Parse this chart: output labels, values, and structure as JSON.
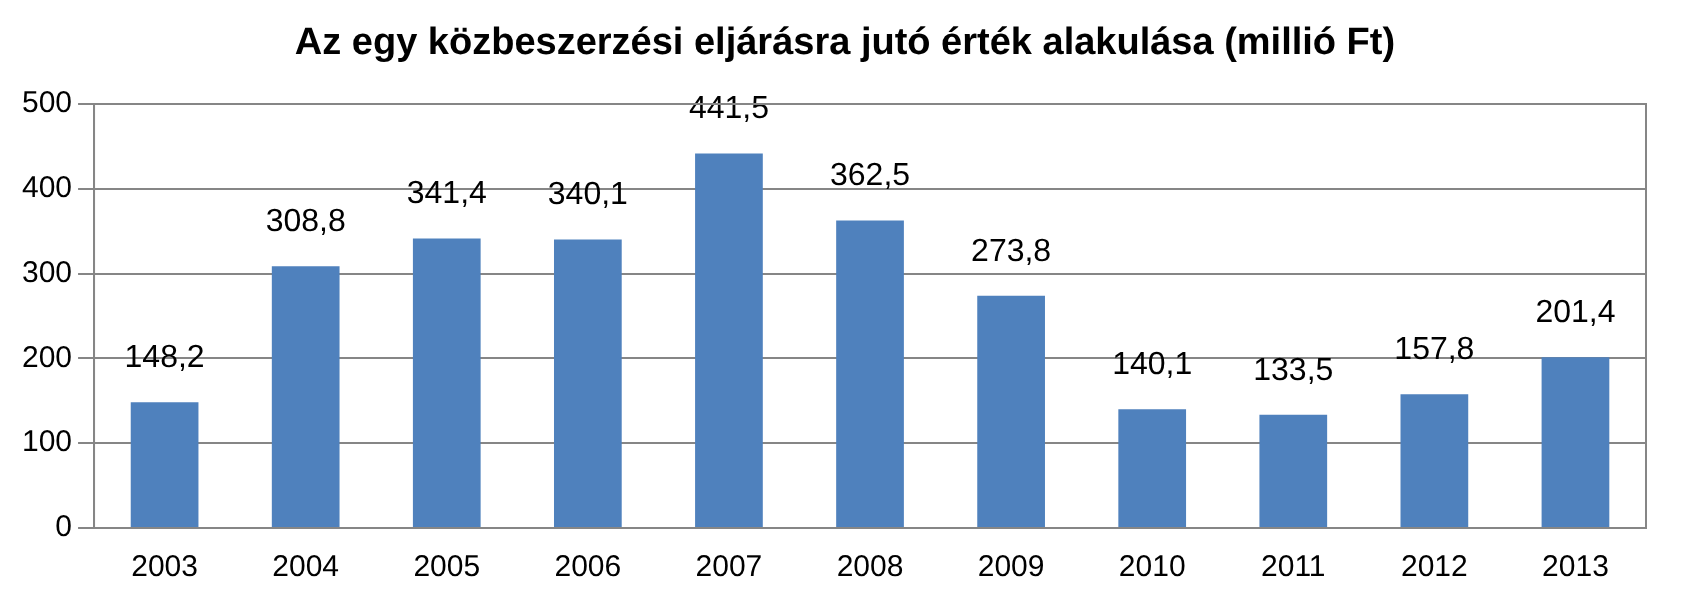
{
  "chart_data": {
    "type": "bar",
    "title": "Az egy közbeszerzési eljárásra jutó érték alakulása (millió Ft)",
    "categories": [
      "2003",
      "2004",
      "2005",
      "2006",
      "2007",
      "2008",
      "2009",
      "2010",
      "2011",
      "2012",
      "2013"
    ],
    "values": [
      148.2,
      308.8,
      341.4,
      340.1,
      441.5,
      362.5,
      273.8,
      140.1,
      133.5,
      157.8,
      201.4
    ],
    "value_labels": [
      "148,2",
      "308,8",
      "341,4",
      "340,1",
      "441,5",
      "362,5",
      "273,8",
      "140,1",
      "133,5",
      "157,8",
      "201,4"
    ],
    "color": "#4f81bd",
    "ylim": [
      0,
      500
    ],
    "yticks": [
      0,
      100,
      200,
      300,
      400,
      500
    ],
    "grid": "y",
    "legend": false
  }
}
